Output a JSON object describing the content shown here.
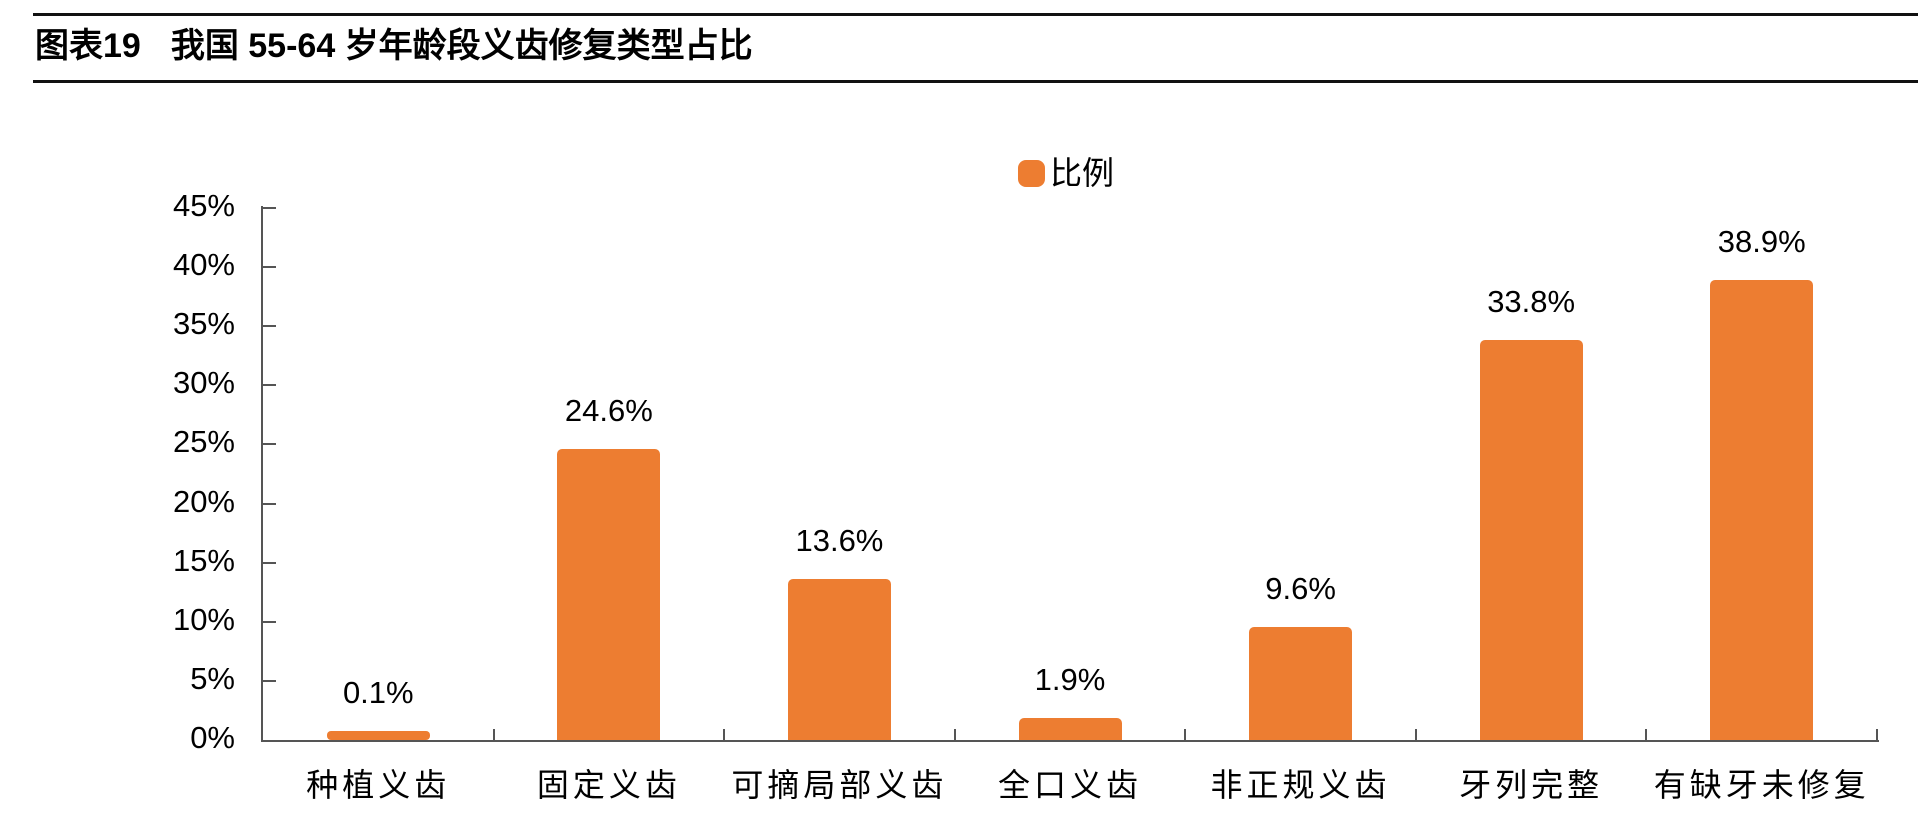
{
  "header": {
    "figure_label": "图表19",
    "title": "我国 55-64 岁年龄段义齿修复类型占比"
  },
  "legend": {
    "label": "比例",
    "swatch_color": "#ED7D31"
  },
  "chart_data": {
    "type": "bar",
    "title": "图表19 我国 55-64 岁年龄段义齿修复类型占比",
    "series_name": "比例",
    "categories": [
      "种植义齿",
      "固定义齿",
      "可摘局部义齿",
      "全口义齿",
      "非正规义齿",
      "牙列完整",
      "有缺牙未修复"
    ],
    "values": [
      0.1,
      24.6,
      13.6,
      1.9,
      9.6,
      33.8,
      38.9
    ],
    "data_labels": [
      "0.1%",
      "24.6%",
      "13.6%",
      "1.9%",
      "9.6%",
      "33.8%",
      "38.9%"
    ],
    "xlabel": "",
    "ylabel": "",
    "ylim": [
      0,
      45
    ],
    "ytick_step": 5,
    "ytick_labels": [
      "0%",
      "5%",
      "10%",
      "15%",
      "20%",
      "25%",
      "30%",
      "35%",
      "40%",
      "45%"
    ],
    "bar_color": "#ED7D31",
    "axis_color": "#555555",
    "grid": false,
    "legend_position": "top-center"
  }
}
